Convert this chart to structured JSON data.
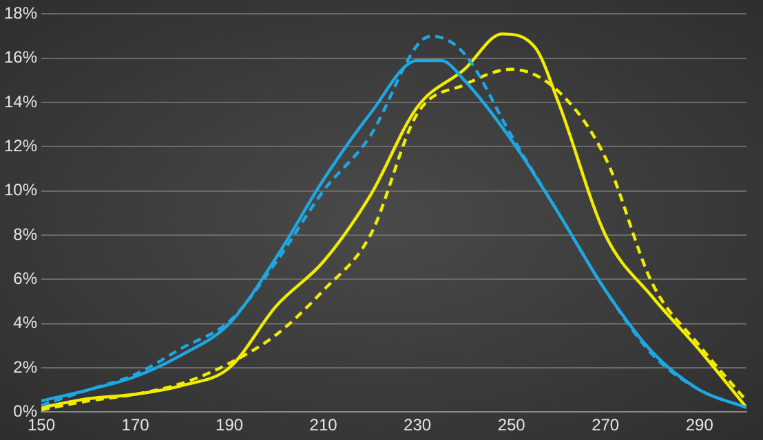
{
  "chart_data": {
    "type": "line",
    "xlim": [
      150,
      300
    ],
    "xticks": [
      150,
      170,
      190,
      210,
      230,
      250,
      270,
      290
    ],
    "ylim": [
      0,
      18
    ],
    "yticks": [
      {
        "value": 0,
        "label": "0%"
      },
      {
        "value": 2,
        "label": "2%"
      },
      {
        "value": 4,
        "label": "4%"
      },
      {
        "value": 6,
        "label": "6%"
      },
      {
        "value": 8,
        "label": "8%"
      },
      {
        "value": 10,
        "label": "10%"
      },
      {
        "value": 12,
        "label": "12%"
      },
      {
        "value": 14,
        "label": "14%"
      },
      {
        "value": 16,
        "label": "16%"
      },
      {
        "value": 18,
        "label": "18%"
      }
    ],
    "grid": "y",
    "legend": false,
    "marker": "none",
    "series": [
      {
        "color": "#1ea7e0",
        "line_style": "solid",
        "x": [
          150,
          160,
          170,
          180,
          190,
          200,
          210,
          220,
          230,
          235,
          240,
          250,
          260,
          270,
          280,
          290,
          300
        ],
        "values": [
          0.5,
          1.0,
          1.6,
          2.6,
          4.0,
          7.0,
          10.5,
          13.5,
          15.9,
          15.9,
          15.0,
          12.3,
          9.0,
          5.5,
          2.7,
          1.0,
          0.2
        ]
      },
      {
        "color": "#1ea7e0",
        "line_style": "dashed",
        "x": [
          150,
          160,
          170,
          180,
          190,
          200,
          210,
          220,
          230,
          233,
          240,
          250,
          260,
          270,
          280,
          290,
          300
        ],
        "values": [
          0.3,
          1.0,
          1.7,
          2.9,
          4.1,
          6.8,
          10.0,
          12.5,
          16.6,
          17.0,
          16.2,
          12.5,
          9.0,
          5.5,
          2.6,
          1.0,
          0.2
        ]
      },
      {
        "color": "#f2ec00",
        "line_style": "solid",
        "x": [
          150,
          160,
          170,
          180,
          190,
          200,
          210,
          220,
          230,
          240,
          248,
          255,
          260,
          270,
          280,
          290,
          300
        ],
        "values": [
          0.2,
          0.6,
          0.8,
          1.2,
          2.0,
          4.8,
          6.8,
          9.8,
          13.8,
          15.5,
          17.1,
          16.5,
          14.0,
          8.0,
          5.2,
          2.8,
          0.2
        ]
      },
      {
        "color": "#f2ec00",
        "line_style": "dashed",
        "x": [
          150,
          160,
          170,
          180,
          190,
          200,
          210,
          220,
          230,
          240,
          250,
          260,
          270,
          280,
          290,
          300
        ],
        "values": [
          0.1,
          0.5,
          0.8,
          1.3,
          2.2,
          3.5,
          5.5,
          8.0,
          13.5,
          14.8,
          15.5,
          14.5,
          11.5,
          5.8,
          3.0,
          0.5
        ]
      }
    ]
  }
}
